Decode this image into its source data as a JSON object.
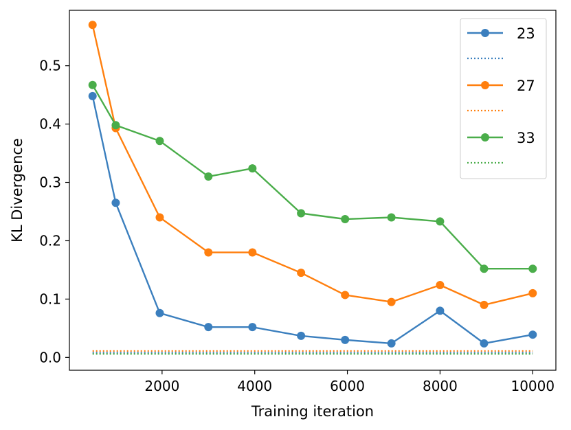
{
  "chart_data": {
    "type": "line",
    "title": "",
    "xlabel": "Training iteration",
    "ylabel": "KL Divergence",
    "xlim": [
      0,
      10500
    ],
    "ylim": [
      -0.022,
      0.595
    ],
    "xticks": [
      2000,
      4000,
      6000,
      8000,
      10000
    ],
    "xtick_labels": [
      "2000",
      "4000",
      "6000",
      "8000",
      "10000"
    ],
    "yticks": [
      0.0,
      0.1,
      0.2,
      0.3,
      0.4,
      0.5
    ],
    "ytick_labels": [
      "0.0",
      "0.1",
      "0.2",
      "0.3",
      "0.4",
      "0.5"
    ],
    "grid": false,
    "legend_position": "top-right",
    "x": [
      500,
      1000,
      1950,
      3000,
      3950,
      5000,
      5950,
      6950,
      8000,
      8950,
      10000
    ],
    "series": [
      {
        "name": "23",
        "color": "#3b7fbe",
        "values": [
          0.448,
          0.265,
          0.076,
          0.052,
          0.052,
          0.037,
          0.03,
          0.024,
          0.08,
          0.024,
          0.039
        ],
        "baseline": 0.008
      },
      {
        "name": "27",
        "color": "#ff7f0e",
        "values": [
          0.57,
          0.393,
          0.24,
          0.18,
          0.18,
          0.145,
          0.107,
          0.095,
          0.124,
          0.09,
          0.11
        ],
        "baseline": 0.011
      },
      {
        "name": "33",
        "color": "#4aad4a",
        "values": [
          0.467,
          0.398,
          0.371,
          0.31,
          0.324,
          0.247,
          0.237,
          0.24,
          0.233,
          0.152,
          0.152
        ],
        "baseline": 0.006
      }
    ]
  }
}
